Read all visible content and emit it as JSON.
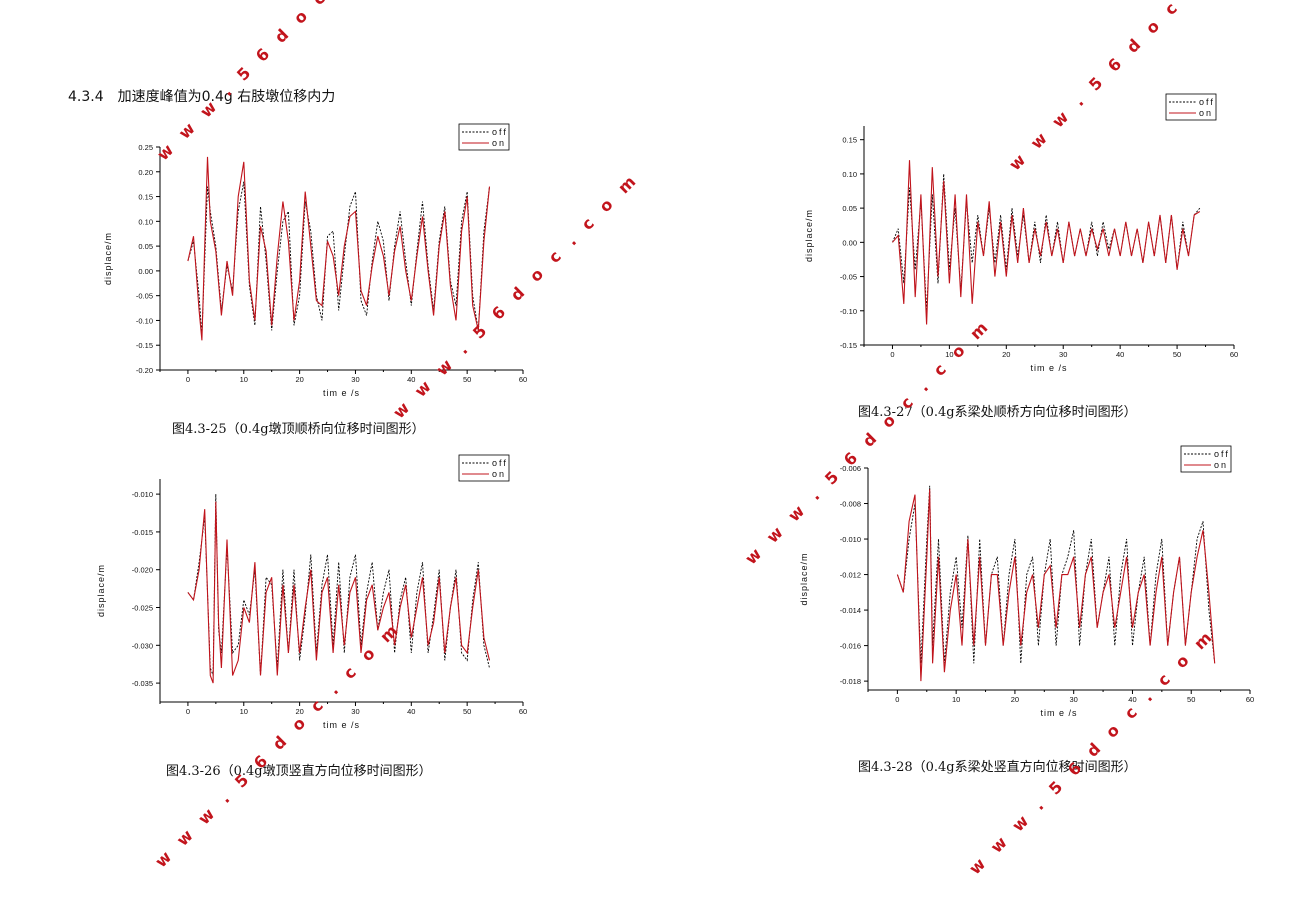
{
  "section": {
    "number": "4.3.4",
    "title": "加速度峰值为0.4g 右肢墩位移内力"
  },
  "colors": {
    "off": "#000000",
    "on": "#c0141c",
    "watermark": "#c2141c"
  },
  "watermarks": [
    "w w w . 5 6 d o c . c o m"
  ],
  "chart_data": [
    {
      "type": "line",
      "caption": "图4.3-25（0.4g墩顶顺桥向位移时间图形）",
      "xlabel": "tim e /s",
      "ylabel": "displace/m",
      "xlim": [
        -5,
        60
      ],
      "ylim": [
        -0.2,
        0.25
      ],
      "xticks": [
        "0",
        "10",
        "20",
        "30",
        "40",
        "50",
        "60"
      ],
      "yticks": [
        "-0.20",
        "-0.15",
        "-0.10",
        "-0.05",
        "0.00",
        "0.05",
        "0.10",
        "0.15",
        "0.20",
        "0.25"
      ],
      "legend": [
        "off",
        "on"
      ],
      "series": [
        {
          "name": "off",
          "x": [
            0,
            1,
            2,
            2.5,
            3,
            3.5,
            4,
            5,
            6,
            7,
            8,
            9,
            10,
            11,
            12,
            13,
            14,
            15,
            16,
            17,
            18,
            19,
            20,
            21,
            22,
            23,
            24,
            25,
            26,
            27,
            28,
            29,
            30,
            31,
            32,
            33,
            34,
            35,
            36,
            37,
            38,
            39,
            40,
            41,
            42,
            43,
            44,
            45,
            46,
            47,
            48,
            49,
            50,
            51,
            52,
            53,
            54
          ],
          "y": [
            0.02,
            0.06,
            -0.05,
            -0.13,
            0.02,
            0.17,
            0.12,
            0.05,
            -0.08,
            0.01,
            -0.04,
            0.12,
            0.18,
            -0.03,
            -0.11,
            0.13,
            0.02,
            -0.12,
            0.0,
            0.1,
            0.12,
            -0.11,
            -0.05,
            0.14,
            0.08,
            -0.05,
            -0.1,
            0.07,
            0.08,
            -0.08,
            0.03,
            0.13,
            0.16,
            -0.06,
            -0.09,
            0.02,
            0.1,
            0.06,
            -0.06,
            0.05,
            0.12,
            0.02,
            -0.07,
            0.04,
            0.14,
            0.01,
            -0.08,
            0.06,
            0.13,
            -0.02,
            -0.07,
            0.1,
            0.16,
            -0.05,
            -0.12,
            0.08,
            0.17
          ]
        },
        {
          "name": "on",
          "x": [
            0,
            1,
            2,
            2.5,
            3,
            3.5,
            4,
            5,
            6,
            7,
            8,
            9,
            10,
            11,
            12,
            13,
            14,
            15,
            16,
            17,
            18,
            19,
            20,
            21,
            22,
            23,
            24,
            25,
            26,
            27,
            28,
            29,
            30,
            31,
            32,
            33,
            34,
            35,
            36,
            37,
            38,
            39,
            40,
            41,
            42,
            43,
            44,
            45,
            46,
            47,
            48,
            49,
            50,
            51,
            52,
            53,
            54
          ],
          "y": [
            0.02,
            0.07,
            -0.08,
            -0.14,
            0.05,
            0.23,
            0.1,
            0.04,
            -0.09,
            0.02,
            -0.05,
            0.15,
            0.22,
            -0.02,
            -0.1,
            0.09,
            0.04,
            -0.11,
            0.03,
            0.14,
            0.06,
            -0.1,
            -0.02,
            0.16,
            0.05,
            -0.06,
            -0.07,
            0.06,
            0.03,
            -0.05,
            0.05,
            0.11,
            0.12,
            -0.04,
            -0.07,
            0.01,
            0.07,
            0.03,
            -0.05,
            0.04,
            0.09,
            0.0,
            -0.06,
            0.03,
            0.11,
            0.0,
            -0.09,
            0.05,
            0.12,
            -0.03,
            -0.1,
            0.08,
            0.15,
            -0.07,
            -0.12,
            0.06,
            0.17
          ]
        }
      ]
    },
    {
      "type": "line",
      "caption": "图4.3-26（0.4g墩顶竖直方向位移时间图形）",
      "xlabel": "tim e /s",
      "ylabel": "displace/m",
      "xlim": [
        -5,
        60
      ],
      "ylim": [
        -0.0375,
        -0.008
      ],
      "xticks": [
        "0",
        "10",
        "20",
        "30",
        "40",
        "50",
        "60"
      ],
      "yticks": [
        "-0.035",
        "-0.030",
        "-0.025",
        "-0.020",
        "-0.015",
        "-0.010"
      ],
      "legend": [
        "off",
        "on"
      ],
      "series": [
        {
          "name": "off",
          "x": [
            0,
            1,
            2,
            3,
            4,
            4.5,
            5,
            5.5,
            6,
            7,
            8,
            9,
            10,
            11,
            12,
            13,
            14,
            15,
            16,
            17,
            18,
            19,
            20,
            21,
            22,
            23,
            24,
            25,
            26,
            27,
            28,
            29,
            30,
            31,
            32,
            33,
            34,
            35,
            36,
            37,
            38,
            39,
            40,
            41,
            42,
            43,
            44,
            45,
            46,
            47,
            48,
            49,
            50,
            51,
            52,
            53,
            54
          ],
          "y": [
            -0.023,
            -0.024,
            -0.019,
            -0.013,
            -0.033,
            -0.034,
            -0.01,
            -0.028,
            -0.031,
            -0.017,
            -0.031,
            -0.03,
            -0.024,
            -0.026,
            -0.02,
            -0.034,
            -0.021,
            -0.022,
            -0.033,
            -0.02,
            -0.031,
            -0.02,
            -0.032,
            -0.026,
            -0.018,
            -0.031,
            -0.022,
            -0.018,
            -0.03,
            -0.019,
            -0.031,
            -0.021,
            -0.018,
            -0.03,
            -0.023,
            -0.019,
            -0.028,
            -0.023,
            -0.02,
            -0.031,
            -0.024,
            -0.021,
            -0.031,
            -0.023,
            -0.019,
            -0.031,
            -0.026,
            -0.02,
            -0.032,
            -0.025,
            -0.02,
            -0.031,
            -0.032,
            -0.024,
            -0.019,
            -0.03,
            -0.033
          ]
        },
        {
          "name": "on",
          "x": [
            0,
            1,
            2,
            3,
            4,
            4.5,
            5,
            5.5,
            6,
            7,
            8,
            9,
            10,
            11,
            12,
            13,
            14,
            15,
            16,
            17,
            18,
            19,
            20,
            21,
            22,
            23,
            24,
            25,
            26,
            27,
            28,
            29,
            30,
            31,
            32,
            33,
            34,
            35,
            36,
            37,
            38,
            39,
            40,
            41,
            42,
            43,
            44,
            45,
            46,
            47,
            48,
            49,
            50,
            51,
            52,
            53,
            54
          ],
          "y": [
            -0.023,
            -0.024,
            -0.02,
            -0.012,
            -0.034,
            -0.035,
            -0.011,
            -0.027,
            -0.033,
            -0.016,
            -0.034,
            -0.032,
            -0.025,
            -0.027,
            -0.019,
            -0.034,
            -0.023,
            -0.021,
            -0.034,
            -0.022,
            -0.031,
            -0.022,
            -0.031,
            -0.025,
            -0.02,
            -0.032,
            -0.023,
            -0.021,
            -0.031,
            -0.022,
            -0.03,
            -0.023,
            -0.021,
            -0.031,
            -0.024,
            -0.022,
            -0.028,
            -0.025,
            -0.023,
            -0.03,
            -0.025,
            -0.022,
            -0.029,
            -0.025,
            -0.021,
            -0.03,
            -0.027,
            -0.021,
            -0.031,
            -0.025,
            -0.021,
            -0.03,
            -0.031,
            -0.025,
            -0.02,
            -0.029,
            -0.032
          ]
        }
      ]
    },
    {
      "type": "line",
      "caption": "图4.3-27（0.4g系梁处顺桥方向位移时间图形）",
      "xlabel": "tim e /s",
      "ylabel": "displace/m",
      "xlim": [
        -5,
        60
      ],
      "ylim": [
        -0.15,
        0.17
      ],
      "xticks": [
        "0",
        "10",
        "20",
        "30",
        "40",
        "50",
        "60"
      ],
      "yticks": [
        "-0.15",
        "-0.10",
        "-0.05",
        "0.00",
        "0.05",
        "0.10",
        "0.15"
      ],
      "legend": [
        "off",
        "on"
      ],
      "series": [
        {
          "name": "off",
          "x": [
            0,
            1,
            2,
            3,
            4,
            5,
            6,
            7,
            8,
            9,
            10,
            11,
            12,
            13,
            14,
            15,
            16,
            17,
            18,
            19,
            20,
            21,
            22,
            23,
            24,
            25,
            26,
            27,
            28,
            29,
            30,
            31,
            32,
            33,
            34,
            35,
            36,
            37,
            38,
            39,
            40,
            41,
            42,
            43,
            44,
            45,
            46,
            47,
            48,
            49,
            50,
            51,
            52,
            53,
            54
          ],
          "y": [
            0.0,
            0.02,
            -0.06,
            0.08,
            -0.04,
            0.06,
            -0.1,
            0.07,
            -0.06,
            0.1,
            -0.04,
            0.05,
            -0.07,
            0.06,
            -0.03,
            0.04,
            -0.02,
            0.05,
            -0.03,
            0.04,
            -0.04,
            0.05,
            -0.02,
            0.04,
            -0.03,
            0.03,
            -0.03,
            0.04,
            -0.02,
            0.03,
            -0.03,
            0.03,
            -0.02,
            0.02,
            -0.02,
            0.03,
            -0.02,
            0.03,
            -0.01,
            0.02,
            -0.02,
            0.03,
            -0.02,
            0.02,
            -0.03,
            0.03,
            -0.02,
            0.04,
            -0.03,
            0.04,
            -0.04,
            0.03,
            -0.02,
            0.04,
            0.05
          ]
        },
        {
          "name": "on",
          "x": [
            0,
            1,
            2,
            3,
            4,
            5,
            6,
            7,
            8,
            9,
            10,
            11,
            12,
            13,
            14,
            15,
            16,
            17,
            18,
            19,
            20,
            21,
            22,
            23,
            24,
            25,
            26,
            27,
            28,
            29,
            30,
            31,
            32,
            33,
            34,
            35,
            36,
            37,
            38,
            39,
            40,
            41,
            42,
            43,
            44,
            45,
            46,
            47,
            48,
            49,
            50,
            51,
            52,
            53,
            54
          ],
          "y": [
            0.0,
            0.01,
            -0.09,
            0.12,
            -0.08,
            0.07,
            -0.12,
            0.11,
            -0.05,
            0.09,
            -0.06,
            0.07,
            -0.08,
            0.07,
            -0.09,
            0.03,
            -0.02,
            0.06,
            -0.05,
            0.03,
            -0.05,
            0.04,
            -0.03,
            0.05,
            -0.03,
            0.02,
            -0.02,
            0.03,
            -0.02,
            0.02,
            -0.03,
            0.03,
            -0.02,
            0.02,
            -0.02,
            0.02,
            -0.01,
            0.02,
            -0.02,
            0.02,
            -0.02,
            0.03,
            -0.02,
            0.02,
            -0.03,
            0.03,
            -0.02,
            0.04,
            -0.03,
            0.04,
            -0.04,
            0.02,
            -0.02,
            0.04,
            0.045
          ]
        }
      ]
    },
    {
      "type": "line",
      "caption": "图4.3-28（0.4g系梁处竖直方向位移时间图形）",
      "xlabel": "tim e /s",
      "ylabel": "displace/m",
      "xlim": [
        -5,
        60
      ],
      "ylim": [
        -0.0185,
        -0.006
      ],
      "xticks": [
        "0",
        "10",
        "20",
        "30",
        "40",
        "50",
        "60"
      ],
      "yticks": [
        "-0.018",
        "-0.016",
        "-0.014",
        "-0.012",
        "-0.010",
        "-0.008",
        "-0.006"
      ],
      "legend": [
        "off",
        "on"
      ],
      "series": [
        {
          "name": "off",
          "x": [
            0,
            1,
            2,
            3,
            4,
            5,
            5.5,
            6,
            7,
            8,
            9,
            10,
            11,
            12,
            13,
            14,
            15,
            16,
            17,
            18,
            19,
            20,
            21,
            22,
            23,
            24,
            25,
            26,
            27,
            28,
            29,
            30,
            31,
            32,
            33,
            34,
            35,
            36,
            37,
            38,
            39,
            40,
            41,
            42,
            43,
            44,
            45,
            46,
            47,
            48,
            49,
            50,
            51,
            52,
            53,
            54
          ],
          "y": [
            -0.012,
            -0.013,
            -0.01,
            -0.008,
            -0.017,
            -0.01,
            -0.007,
            -0.016,
            -0.01,
            -0.017,
            -0.013,
            -0.011,
            -0.015,
            -0.0098,
            -0.017,
            -0.01,
            -0.016,
            -0.012,
            -0.011,
            -0.016,
            -0.012,
            -0.01,
            -0.017,
            -0.012,
            -0.011,
            -0.016,
            -0.012,
            -0.01,
            -0.016,
            -0.012,
            -0.011,
            -0.0095,
            -0.016,
            -0.012,
            -0.01,
            -0.015,
            -0.013,
            -0.011,
            -0.016,
            -0.012,
            -0.01,
            -0.016,
            -0.013,
            -0.011,
            -0.016,
            -0.012,
            -0.01,
            -0.016,
            -0.013,
            -0.011,
            -0.016,
            -0.013,
            -0.01,
            -0.009,
            -0.014,
            -0.017
          ]
        },
        {
          "name": "on",
          "x": [
            0,
            1,
            2,
            3,
            4,
            5,
            5.5,
            6,
            7,
            8,
            9,
            10,
            11,
            12,
            13,
            14,
            15,
            16,
            17,
            18,
            19,
            20,
            21,
            22,
            23,
            24,
            25,
            26,
            27,
            28,
            29,
            30,
            31,
            32,
            33,
            34,
            35,
            36,
            37,
            38,
            39,
            40,
            41,
            42,
            43,
            44,
            45,
            46,
            47,
            48,
            49,
            50,
            51,
            52,
            53,
            54
          ],
          "y": [
            -0.012,
            -0.013,
            -0.009,
            -0.0075,
            -0.018,
            -0.011,
            -0.0072,
            -0.017,
            -0.011,
            -0.0175,
            -0.014,
            -0.012,
            -0.016,
            -0.01,
            -0.016,
            -0.011,
            -0.016,
            -0.012,
            -0.012,
            -0.016,
            -0.013,
            -0.011,
            -0.016,
            -0.013,
            -0.012,
            -0.015,
            -0.012,
            -0.0115,
            -0.015,
            -0.012,
            -0.012,
            -0.011,
            -0.015,
            -0.012,
            -0.011,
            -0.015,
            -0.013,
            -0.012,
            -0.015,
            -0.013,
            -0.011,
            -0.015,
            -0.013,
            -0.012,
            -0.016,
            -0.013,
            -0.011,
            -0.016,
            -0.013,
            -0.011,
            -0.016,
            -0.013,
            -0.011,
            -0.0095,
            -0.013,
            -0.017
          ]
        }
      ]
    }
  ]
}
